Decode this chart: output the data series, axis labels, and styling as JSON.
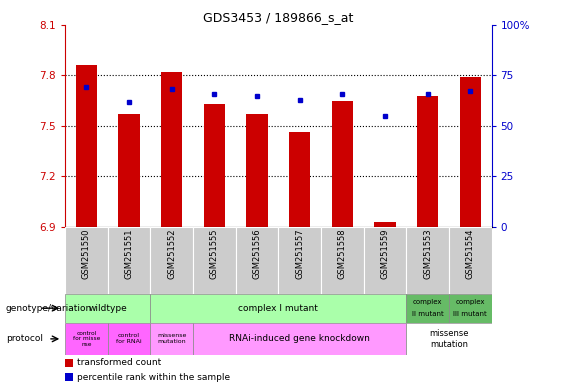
{
  "title": "GDS3453 / 189866_s_at",
  "samples": [
    "GSM251550",
    "GSM251551",
    "GSM251552",
    "GSM251555",
    "GSM251556",
    "GSM251557",
    "GSM251558",
    "GSM251559",
    "GSM251553",
    "GSM251554"
  ],
  "transformed_count": [
    7.86,
    7.57,
    7.82,
    7.63,
    7.57,
    7.46,
    7.65,
    6.93,
    7.68,
    7.79
  ],
  "percentile_rank": [
    69,
    62,
    68,
    66,
    65,
    63,
    66,
    55,
    66,
    67
  ],
  "ylim_left": [
    6.9,
    8.1
  ],
  "ylim_right": [
    0,
    100
  ],
  "yticks_left": [
    6.9,
    7.2,
    7.5,
    7.8,
    8.1
  ],
  "yticks_right": [
    0,
    25,
    50,
    75,
    100
  ],
  "ytick_labels_left": [
    "6.9",
    "7.2",
    "7.5",
    "7.8",
    "8.1"
  ],
  "ytick_labels_right": [
    "0",
    "25",
    "50",
    "75",
    "100%"
  ],
  "bar_color": "#cc0000",
  "dot_color": "#0000cc",
  "sample_box_color": "#cccccc",
  "wildtype_color": "#aaffaa",
  "complex_I_color": "#aaffaa",
  "complex_II_III_color": "#66bb66",
  "ctrl_missense_color": "#ff66ff",
  "rnai_color": "#ff99ff",
  "missense2_color": "#ffffff",
  "grid_dotted_color": "#333333"
}
